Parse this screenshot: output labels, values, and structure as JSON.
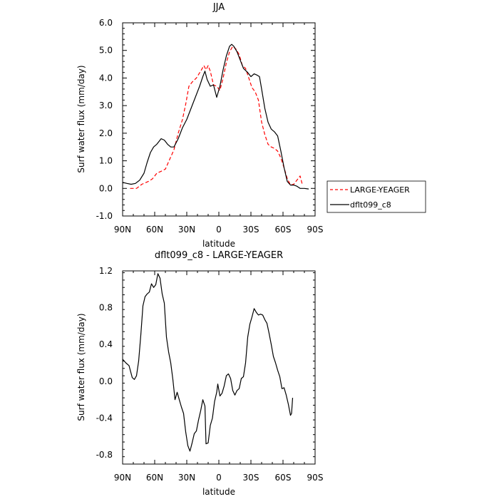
{
  "chart_data": [
    {
      "type": "line",
      "title": "JJA",
      "xlabel": "latitude",
      "ylabel": "Surf water flux (mm/day)",
      "xlim": [
        -90,
        90
      ],
      "ylim": [
        -1.0,
        6.0
      ],
      "x_ticks": [
        {
          "value": -90,
          "label": "90N"
        },
        {
          "value": -60,
          "label": "60N"
        },
        {
          "value": -30,
          "label": "30N"
        },
        {
          "value": 0,
          "label": "0"
        },
        {
          "value": 30,
          "label": "30S"
        },
        {
          "value": 60,
          "label": "60S"
        },
        {
          "value": 90,
          "label": "90S"
        }
      ],
      "y_ticks": [
        {
          "value": -1.0,
          "label": "-1.0"
        },
        {
          "value": 0.0,
          "label": "0.0"
        },
        {
          "value": 1.0,
          "label": "1.0"
        },
        {
          "value": 2.0,
          "label": "2.0"
        },
        {
          "value": 3.0,
          "label": "3.0"
        },
        {
          "value": 4.0,
          "label": "4.0"
        },
        {
          "value": 5.0,
          "label": "5.0"
        },
        {
          "value": 6.0,
          "label": "6.0"
        }
      ],
      "legend": {
        "placement": "right"
      },
      "series": [
        {
          "name": "LARGE-YEAGER",
          "color": "#ff0000",
          "dash": true,
          "points": [
            [
              -83,
              0.0
            ],
            [
              -77,
              0.0
            ],
            [
              -72,
              0.15
            ],
            [
              -66,
              0.25
            ],
            [
              -62,
              0.35
            ],
            [
              -58,
              0.55
            ],
            [
              -54,
              0.62
            ],
            [
              -50,
              0.7
            ],
            [
              -46,
              1.05
            ],
            [
              -42,
              1.4
            ],
            [
              -38,
              2.0
            ],
            [
              -34,
              2.5
            ],
            [
              -31,
              3.05
            ],
            [
              -28,
              3.7
            ],
            [
              -25,
              3.85
            ],
            [
              -21,
              4.0
            ],
            [
              -17,
              4.25
            ],
            [
              -14,
              4.45
            ],
            [
              -12,
              4.3
            ],
            [
              -10,
              4.45
            ],
            [
              -8,
              4.25
            ],
            [
              -5,
              3.75
            ],
            [
              -2,
              3.7
            ],
            [
              1,
              3.55
            ],
            [
              4,
              4.0
            ],
            [
              7,
              4.55
            ],
            [
              10,
              4.95
            ],
            [
              13,
              5.15
            ],
            [
              16,
              5.05
            ],
            [
              19,
              4.85
            ],
            [
              22,
              4.45
            ],
            [
              25,
              4.35
            ],
            [
              28,
              4.0
            ],
            [
              31,
              3.65
            ],
            [
              34,
              3.5
            ],
            [
              37,
              3.2
            ],
            [
              40,
              2.4
            ],
            [
              43,
              1.95
            ],
            [
              46,
              1.6
            ],
            [
              49,
              1.5
            ],
            [
              52,
              1.45
            ],
            [
              55,
              1.35
            ],
            [
              58,
              1.1
            ],
            [
              61,
              0.75
            ],
            [
              64,
              0.35
            ],
            [
              67,
              0.12
            ],
            [
              70,
              0.15
            ],
            [
              73,
              0.3
            ],
            [
              76,
              0.45
            ],
            [
              78,
              0.15
            ]
          ]
        },
        {
          "name": "dflt099_c8",
          "color": "#000000",
          "dash": false,
          "points": [
            [
              -90,
              0.22
            ],
            [
              -86,
              0.18
            ],
            [
              -82,
              0.15
            ],
            [
              -78,
              0.18
            ],
            [
              -74,
              0.3
            ],
            [
              -70,
              0.55
            ],
            [
              -67,
              0.95
            ],
            [
              -64,
              1.3
            ],
            [
              -61,
              1.5
            ],
            [
              -58,
              1.6
            ],
            [
              -56,
              1.7
            ],
            [
              -54,
              1.8
            ],
            [
              -51,
              1.75
            ],
            [
              -48,
              1.6
            ],
            [
              -45,
              1.5
            ],
            [
              -42,
              1.5
            ],
            [
              -38,
              1.8
            ],
            [
              -34,
              2.2
            ],
            [
              -30,
              2.5
            ],
            [
              -26,
              2.9
            ],
            [
              -22,
              3.3
            ],
            [
              -18,
              3.7
            ],
            [
              -15,
              4.05
            ],
            [
              -13,
              4.25
            ],
            [
              -11,
              3.95
            ],
            [
              -8,
              3.7
            ],
            [
              -5,
              3.75
            ],
            [
              -2,
              3.3
            ],
            [
              1,
              3.7
            ],
            [
              4,
              4.3
            ],
            [
              7,
              4.8
            ],
            [
              10,
              5.15
            ],
            [
              12,
              5.22
            ],
            [
              14,
              5.15
            ],
            [
              17,
              4.95
            ],
            [
              20,
              4.65
            ],
            [
              23,
              4.35
            ],
            [
              27,
              4.2
            ],
            [
              30,
              4.05
            ],
            [
              33,
              4.15
            ],
            [
              36,
              4.1
            ],
            [
              38,
              4.05
            ],
            [
              40,
              3.6
            ],
            [
              43,
              2.9
            ],
            [
              46,
              2.4
            ],
            [
              49,
              2.15
            ],
            [
              52,
              2.05
            ],
            [
              55,
              1.9
            ],
            [
              58,
              1.35
            ],
            [
              61,
              0.75
            ],
            [
              64,
              0.25
            ],
            [
              67,
              0.12
            ],
            [
              70,
              0.12
            ],
            [
              73,
              0.08
            ],
            [
              76,
              0.0
            ],
            [
              80,
              0.0
            ],
            [
              84,
              -0.02
            ]
          ]
        }
      ]
    },
    {
      "type": "line",
      "title": "dflt099_c8 - LARGE-YEAGER",
      "xlabel": "latitude",
      "ylabel": "Surf water flux (mm/day)",
      "xlim": [
        -90,
        90
      ],
      "ylim": [
        -0.9,
        1.2
      ],
      "x_ticks": [
        {
          "value": -90,
          "label": "90N"
        },
        {
          "value": -60,
          "label": "60N"
        },
        {
          "value": -30,
          "label": "30N"
        },
        {
          "value": 0,
          "label": "0"
        },
        {
          "value": 30,
          "label": "30S"
        },
        {
          "value": 60,
          "label": "60S"
        },
        {
          "value": 90,
          "label": "90S"
        }
      ],
      "y_ticks": [
        {
          "value": -0.8,
          "label": "-0.8"
        },
        {
          "value": -0.4,
          "label": "-0.4"
        },
        {
          "value": 0.0,
          "label": "0.0"
        },
        {
          "value": 0.4,
          "label": "0.4"
        },
        {
          "value": 0.8,
          "label": "0.8"
        },
        {
          "value": 1.2,
          "label": "1.2"
        }
      ],
      "series": [
        {
          "color": "#000000",
          "dash": false,
          "points": [
            [
              -90,
              0.24
            ],
            [
              -87,
              0.2
            ],
            [
              -84,
              0.17
            ],
            [
              -81,
              0.04
            ],
            [
              -79,
              0.02
            ],
            [
              -77,
              0.06
            ],
            [
              -75,
              0.22
            ],
            [
              -73,
              0.5
            ],
            [
              -71,
              0.82
            ],
            [
              -69,
              0.92
            ],
            [
              -67,
              0.95
            ],
            [
              -65,
              0.97
            ],
            [
              -63,
              1.06
            ],
            [
              -61,
              1.02
            ],
            [
              -59,
              1.05
            ],
            [
              -57,
              1.17
            ],
            [
              -55,
              1.12
            ],
            [
              -53,
              0.95
            ],
            [
              -51,
              0.85
            ],
            [
              -49,
              0.48
            ],
            [
              -47,
              0.32
            ],
            [
              -45,
              0.2
            ],
            [
              -43,
              0.02
            ],
            [
              -41,
              -0.2
            ],
            [
              -39,
              -0.12
            ],
            [
              -37,
              -0.2
            ],
            [
              -35,
              -0.28
            ],
            [
              -33,
              -0.35
            ],
            [
              -31,
              -0.55
            ],
            [
              -29,
              -0.7
            ],
            [
              -27,
              -0.76
            ],
            [
              -25,
              -0.67
            ],
            [
              -23,
              -0.57
            ],
            [
              -21,
              -0.54
            ],
            [
              -19,
              -0.42
            ],
            [
              -17,
              -0.32
            ],
            [
              -15,
              -0.2
            ],
            [
              -13,
              -0.27
            ],
            [
              -12,
              -0.68
            ],
            [
              -10,
              -0.67
            ],
            [
              -8,
              -0.48
            ],
            [
              -6,
              -0.4
            ],
            [
              -4,
              -0.22
            ],
            [
              -2,
              -0.12
            ],
            [
              -1,
              -0.03
            ],
            [
              1,
              -0.16
            ],
            [
              3,
              -0.13
            ],
            [
              5,
              -0.05
            ],
            [
              7,
              0.06
            ],
            [
              9,
              0.08
            ],
            [
              11,
              0.03
            ],
            [
              13,
              -0.1
            ],
            [
              15,
              -0.15
            ],
            [
              17,
              -0.1
            ],
            [
              19,
              -0.08
            ],
            [
              21,
              0.03
            ],
            [
              23,
              0.05
            ],
            [
              25,
              0.2
            ],
            [
              27,
              0.48
            ],
            [
              29,
              0.62
            ],
            [
              31,
              0.7
            ],
            [
              33,
              0.79
            ],
            [
              35,
              0.75
            ],
            [
              37,
              0.72
            ],
            [
              39,
              0.73
            ],
            [
              41,
              0.72
            ],
            [
              43,
              0.67
            ],
            [
              45,
              0.63
            ],
            [
              47,
              0.52
            ],
            [
              49,
              0.4
            ],
            [
              51,
              0.27
            ],
            [
              53,
              0.2
            ],
            [
              55,
              0.12
            ],
            [
              57,
              0.05
            ],
            [
              59,
              -0.08
            ],
            [
              61,
              -0.07
            ],
            [
              63,
              -0.15
            ],
            [
              65,
              -0.25
            ],
            [
              67,
              -0.37
            ],
            [
              68,
              -0.35
            ],
            [
              69,
              -0.18
            ]
          ]
        }
      ]
    }
  ]
}
